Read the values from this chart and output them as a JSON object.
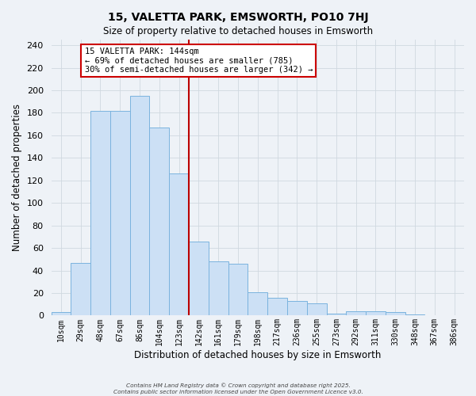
{
  "title": "15, VALETTA PARK, EMSWORTH, PO10 7HJ",
  "subtitle": "Size of property relative to detached houses in Emsworth",
  "xlabel": "Distribution of detached houses by size in Emsworth",
  "ylabel": "Number of detached properties",
  "bar_labels": [
    "10sqm",
    "29sqm",
    "48sqm",
    "67sqm",
    "86sqm",
    "104sqm",
    "123sqm",
    "142sqm",
    "161sqm",
    "179sqm",
    "198sqm",
    "217sqm",
    "236sqm",
    "255sqm",
    "273sqm",
    "292sqm",
    "311sqm",
    "330sqm",
    "348sqm",
    "367sqm",
    "386sqm"
  ],
  "bar_values": [
    3,
    47,
    182,
    182,
    195,
    167,
    126,
    66,
    48,
    46,
    21,
    16,
    13,
    11,
    2,
    4,
    4,
    3,
    1,
    0,
    0
  ],
  "bar_color": "#cce0f5",
  "bar_edge_color": "#7ab3de",
  "vline_color": "#bb0000",
  "annotation_title": "15 VALETTA PARK: 144sqm",
  "annotation_line1": "← 69% of detached houses are smaller (785)",
  "annotation_line2": "30% of semi-detached houses are larger (342) →",
  "annotation_box_color": "#ffffff",
  "annotation_box_edge": "#cc0000",
  "grid_color": "#d0d8e0",
  "background_color": "#eef2f7",
  "footer1": "Contains HM Land Registry data © Crown copyright and database right 2025.",
  "footer2": "Contains public sector information licensed under the Open Government Licence v3.0.",
  "ylim": [
    0,
    245
  ],
  "yticks": [
    0,
    20,
    40,
    60,
    80,
    100,
    120,
    140,
    160,
    180,
    200,
    220,
    240
  ]
}
